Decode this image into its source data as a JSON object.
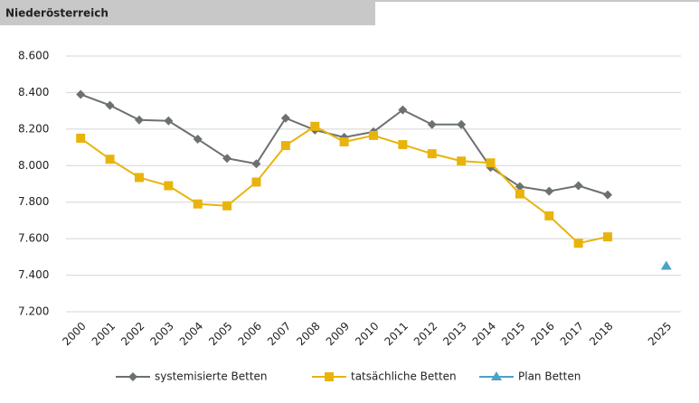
{
  "chart_data": {
    "type": "line",
    "title": "Niederösterreich",
    "categories": [
      "2000",
      "2001",
      "2002",
      "2003",
      "2004",
      "2005",
      "2006",
      "2007",
      "2008",
      "2009",
      "2010",
      "2011",
      "2012",
      "2013",
      "2014",
      "2015",
      "2016",
      "2017",
      "2018",
      null,
      "2025"
    ],
    "series": [
      {
        "name": "systemisierte Betten",
        "color": "#6b716e",
        "marker": "diamond",
        "values": [
          8390,
          8330,
          8250,
          8245,
          8145,
          8040,
          8010,
          8260,
          8195,
          8155,
          8185,
          8305,
          8225,
          8225,
          7990,
          7885,
          7860,
          7890,
          7840,
          null,
          null
        ]
      },
      {
        "name": "tatsächliche Betten",
        "color": "#e8b40c",
        "marker": "square",
        "values": [
          8150,
          8035,
          7935,
          7890,
          7790,
          7780,
          7910,
          8110,
          8215,
          8130,
          8165,
          8115,
          8065,
          8025,
          8015,
          7845,
          7725,
          7575,
          7610,
          null,
          null
        ]
      },
      {
        "name": "Plan Betten",
        "color": "#4aa3c8",
        "marker": "triangle",
        "values": [
          null,
          null,
          null,
          null,
          null,
          null,
          null,
          null,
          null,
          null,
          null,
          null,
          null,
          null,
          null,
          null,
          null,
          null,
          null,
          null,
          7450
        ]
      }
    ],
    "ylim": [
      7200,
      8600
    ],
    "yticks": [
      {
        "value": 7200,
        "label": "7.200"
      },
      {
        "value": 7400,
        "label": "7.400"
      },
      {
        "value": 7600,
        "label": "7.600"
      },
      {
        "value": 7800,
        "label": "7.800"
      },
      {
        "value": 8000,
        "label": "8.000"
      },
      {
        "value": 8200,
        "label": "8.200"
      },
      {
        "value": 8400,
        "label": "8.400"
      },
      {
        "value": 8600,
        "label": "8.600"
      }
    ],
    "grid": true,
    "legend": "bottom"
  }
}
